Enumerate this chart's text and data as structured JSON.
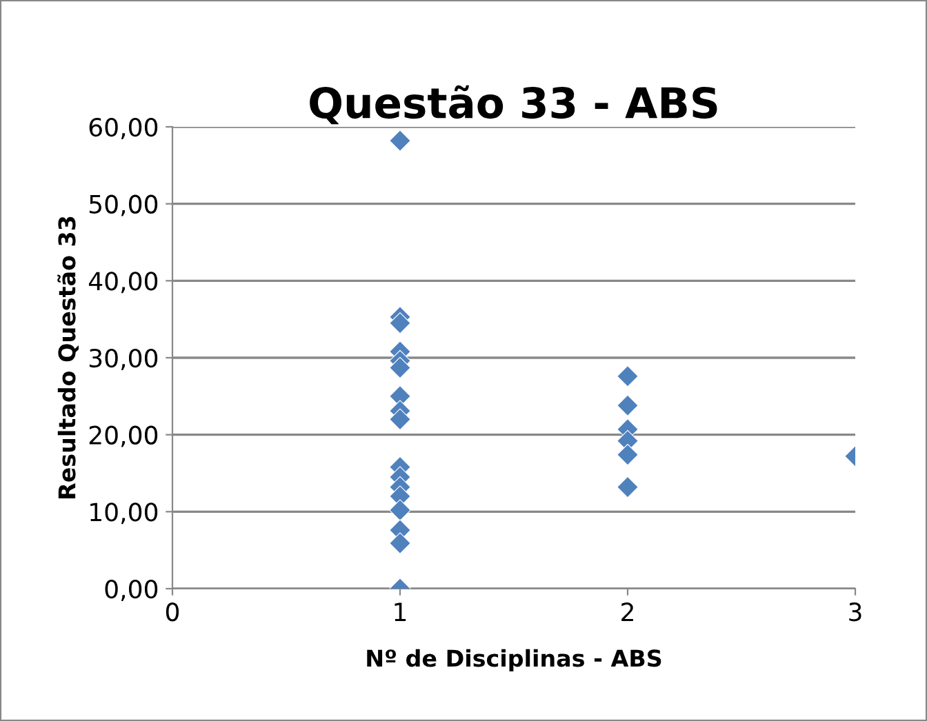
{
  "chart_data": {
    "type": "scatter",
    "title": "Questão 33 - ABS",
    "xlabel": "Nº de Disciplinas - ABS",
    "ylabel": "Resultado Questão 33",
    "x": [
      1,
      1,
      1,
      1,
      1,
      1,
      1,
      1,
      1,
      1,
      1,
      1,
      1,
      1,
      1,
      1,
      1,
      2,
      2,
      2,
      2,
      2,
      2,
      3
    ],
    "values": [
      58.2,
      35.3,
      34.5,
      30.8,
      29.6,
      28.7,
      25.0,
      23.1,
      22.0,
      15.8,
      14.5,
      13.2,
      12.0,
      10.2,
      7.6,
      5.9,
      0,
      27.6,
      23.8,
      20.7,
      19.2,
      17.4,
      13.2,
      17.2
    ],
    "color": "#4f81bd",
    "marker": "diamond",
    "xlim": [
      0,
      3
    ],
    "xticks": [
      0,
      1,
      2,
      3
    ],
    "ylim": [
      0,
      60
    ],
    "yticks": [
      {
        "value": 0,
        "label": "0,00"
      },
      {
        "value": 10,
        "label": "10,00"
      },
      {
        "value": 20,
        "label": "20,00"
      },
      {
        "value": 30,
        "label": "30,00"
      },
      {
        "value": 40,
        "label": "40,00"
      },
      {
        "value": 50,
        "label": "50,00"
      },
      {
        "value": 60,
        "label": "60,00"
      }
    ],
    "grid": "y",
    "legend": false
  }
}
